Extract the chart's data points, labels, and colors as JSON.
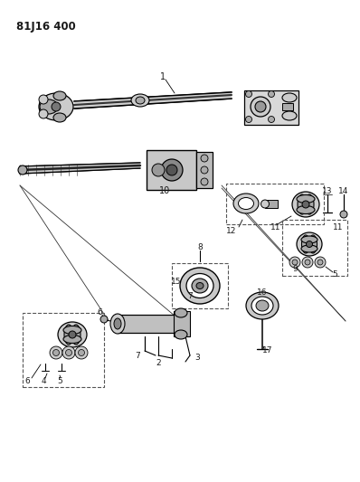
{
  "title": "81J16 400",
  "bg": "#f5f5f0",
  "lc": "#1a1a1a",
  "gray1": "#888888",
  "gray2": "#aaaaaa",
  "gray3": "#cccccc",
  "gray4": "#e8e8e8",
  "dash_color": "#555555",
  "fig_w": 3.98,
  "fig_h": 5.33,
  "dpi": 100
}
